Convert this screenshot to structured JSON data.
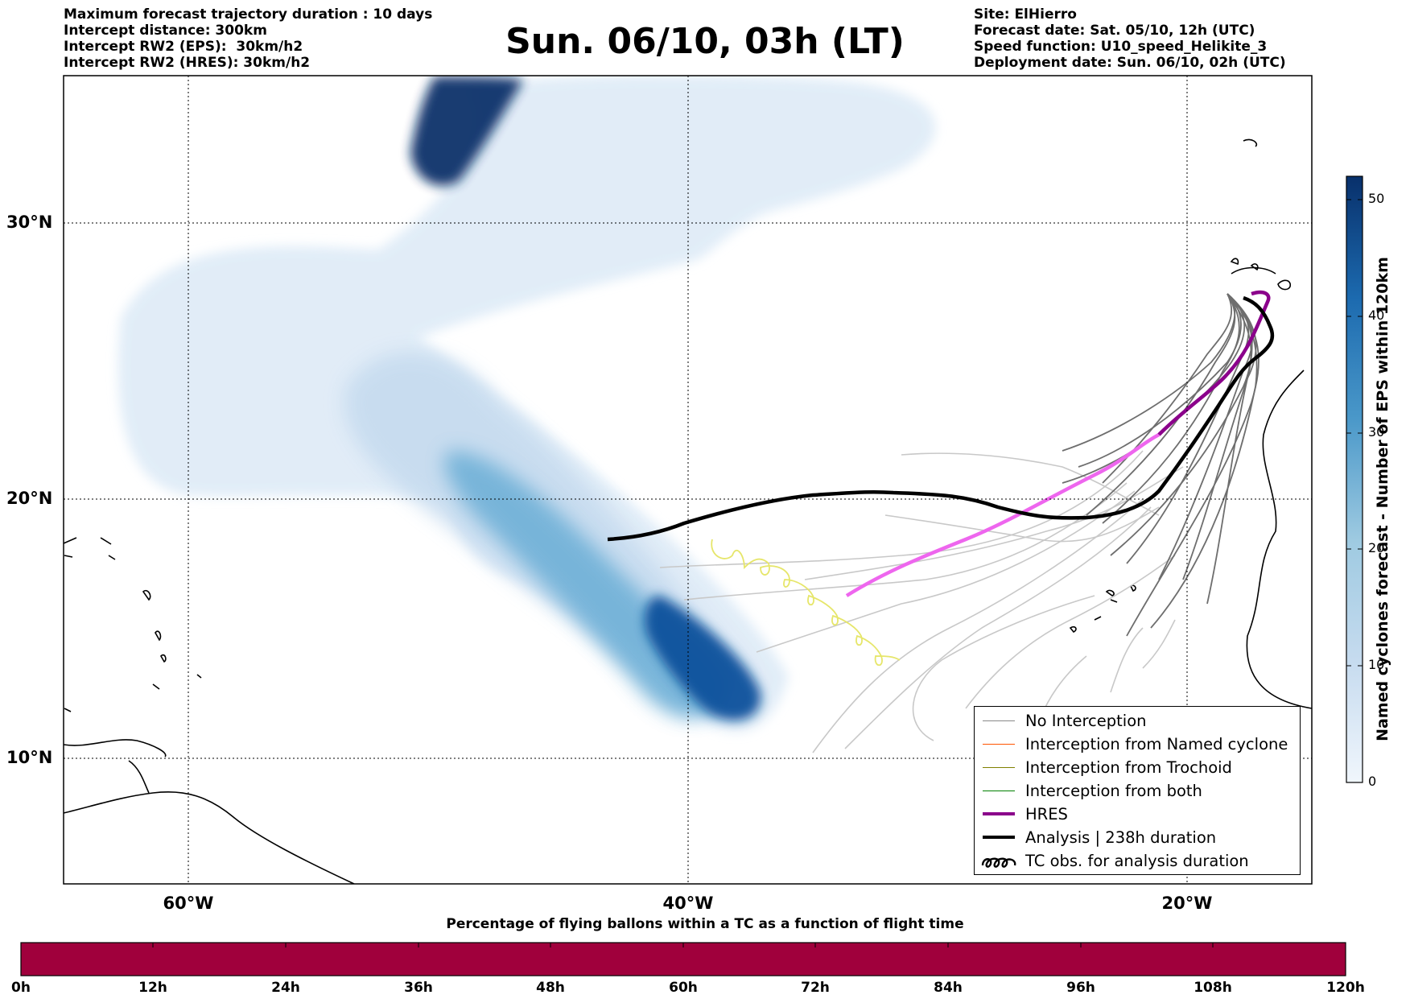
{
  "header": {
    "left": [
      "Maximum forecast trajectory duration : 10 days",
      "Intercept distance: 300km",
      "Intercept RW2 (EPS):  30km/h2",
      "Intercept RW2 (HRES): 30km/h2"
    ],
    "title": "Sun. 06/10, 03h (LT)",
    "right": [
      "Site: ElHierro",
      "Forecast date: Sat. 05/10, 12h (UTC)",
      "Speed function: U10_speed_Helikite_3",
      "Deployment date: Sun. 06/10, 02h (UTC)"
    ]
  },
  "map": {
    "lon_range": [
      -65,
      -15
    ],
    "lat_range": [
      5,
      34.5
    ],
    "lat_labels": [
      "30°N",
      "20°N",
      "10°N"
    ],
    "lon_labels": [
      "60°W",
      "40°W",
      "20°W"
    ],
    "gridlines": "dotted",
    "colors": {
      "hres": "#8b008b",
      "hres_light": "#ee66ee",
      "analysis": "#000000",
      "no_interception": "#888888",
      "named_cyclone": "#ff5500",
      "trochoid": "#808000",
      "both": "#008000",
      "tc_obs": "#e6e66a",
      "density_max": "#08306b"
    }
  },
  "legend": {
    "placement": "lower-right",
    "items": [
      {
        "label": "No Interception",
        "color": "#888888",
        "style": "thin"
      },
      {
        "label": "Interception from Named cyclone",
        "color": "#ff5500",
        "style": "thin"
      },
      {
        "label": "Interception from Trochoid",
        "color": "#808000",
        "style": "thin"
      },
      {
        "label": "Interception from both",
        "color": "#008000",
        "style": "thin"
      },
      {
        "label": "HRES",
        "color": "#8b008b",
        "style": "thick"
      },
      {
        "label": "Analysis | 238h duration",
        "color": "#000000",
        "style": "thick"
      },
      {
        "label": "TC obs. for analysis duration",
        "color": "#000000",
        "style": "loops"
      }
    ]
  },
  "colorbar": {
    "title": "Named cyclones forecast - Number of EPS within 120km",
    "ticks": [
      "0",
      "10",
      "20",
      "30",
      "40",
      "50"
    ],
    "range": [
      0,
      52
    ]
  },
  "timebar": {
    "title": "Percentage of flying ballons within a TC as a function of flight time",
    "ticks": [
      "0h",
      "12h",
      "24h",
      "36h",
      "48h",
      "60h",
      "72h",
      "84h",
      "96h",
      "108h",
      "120h"
    ],
    "color": "#a0003c"
  }
}
